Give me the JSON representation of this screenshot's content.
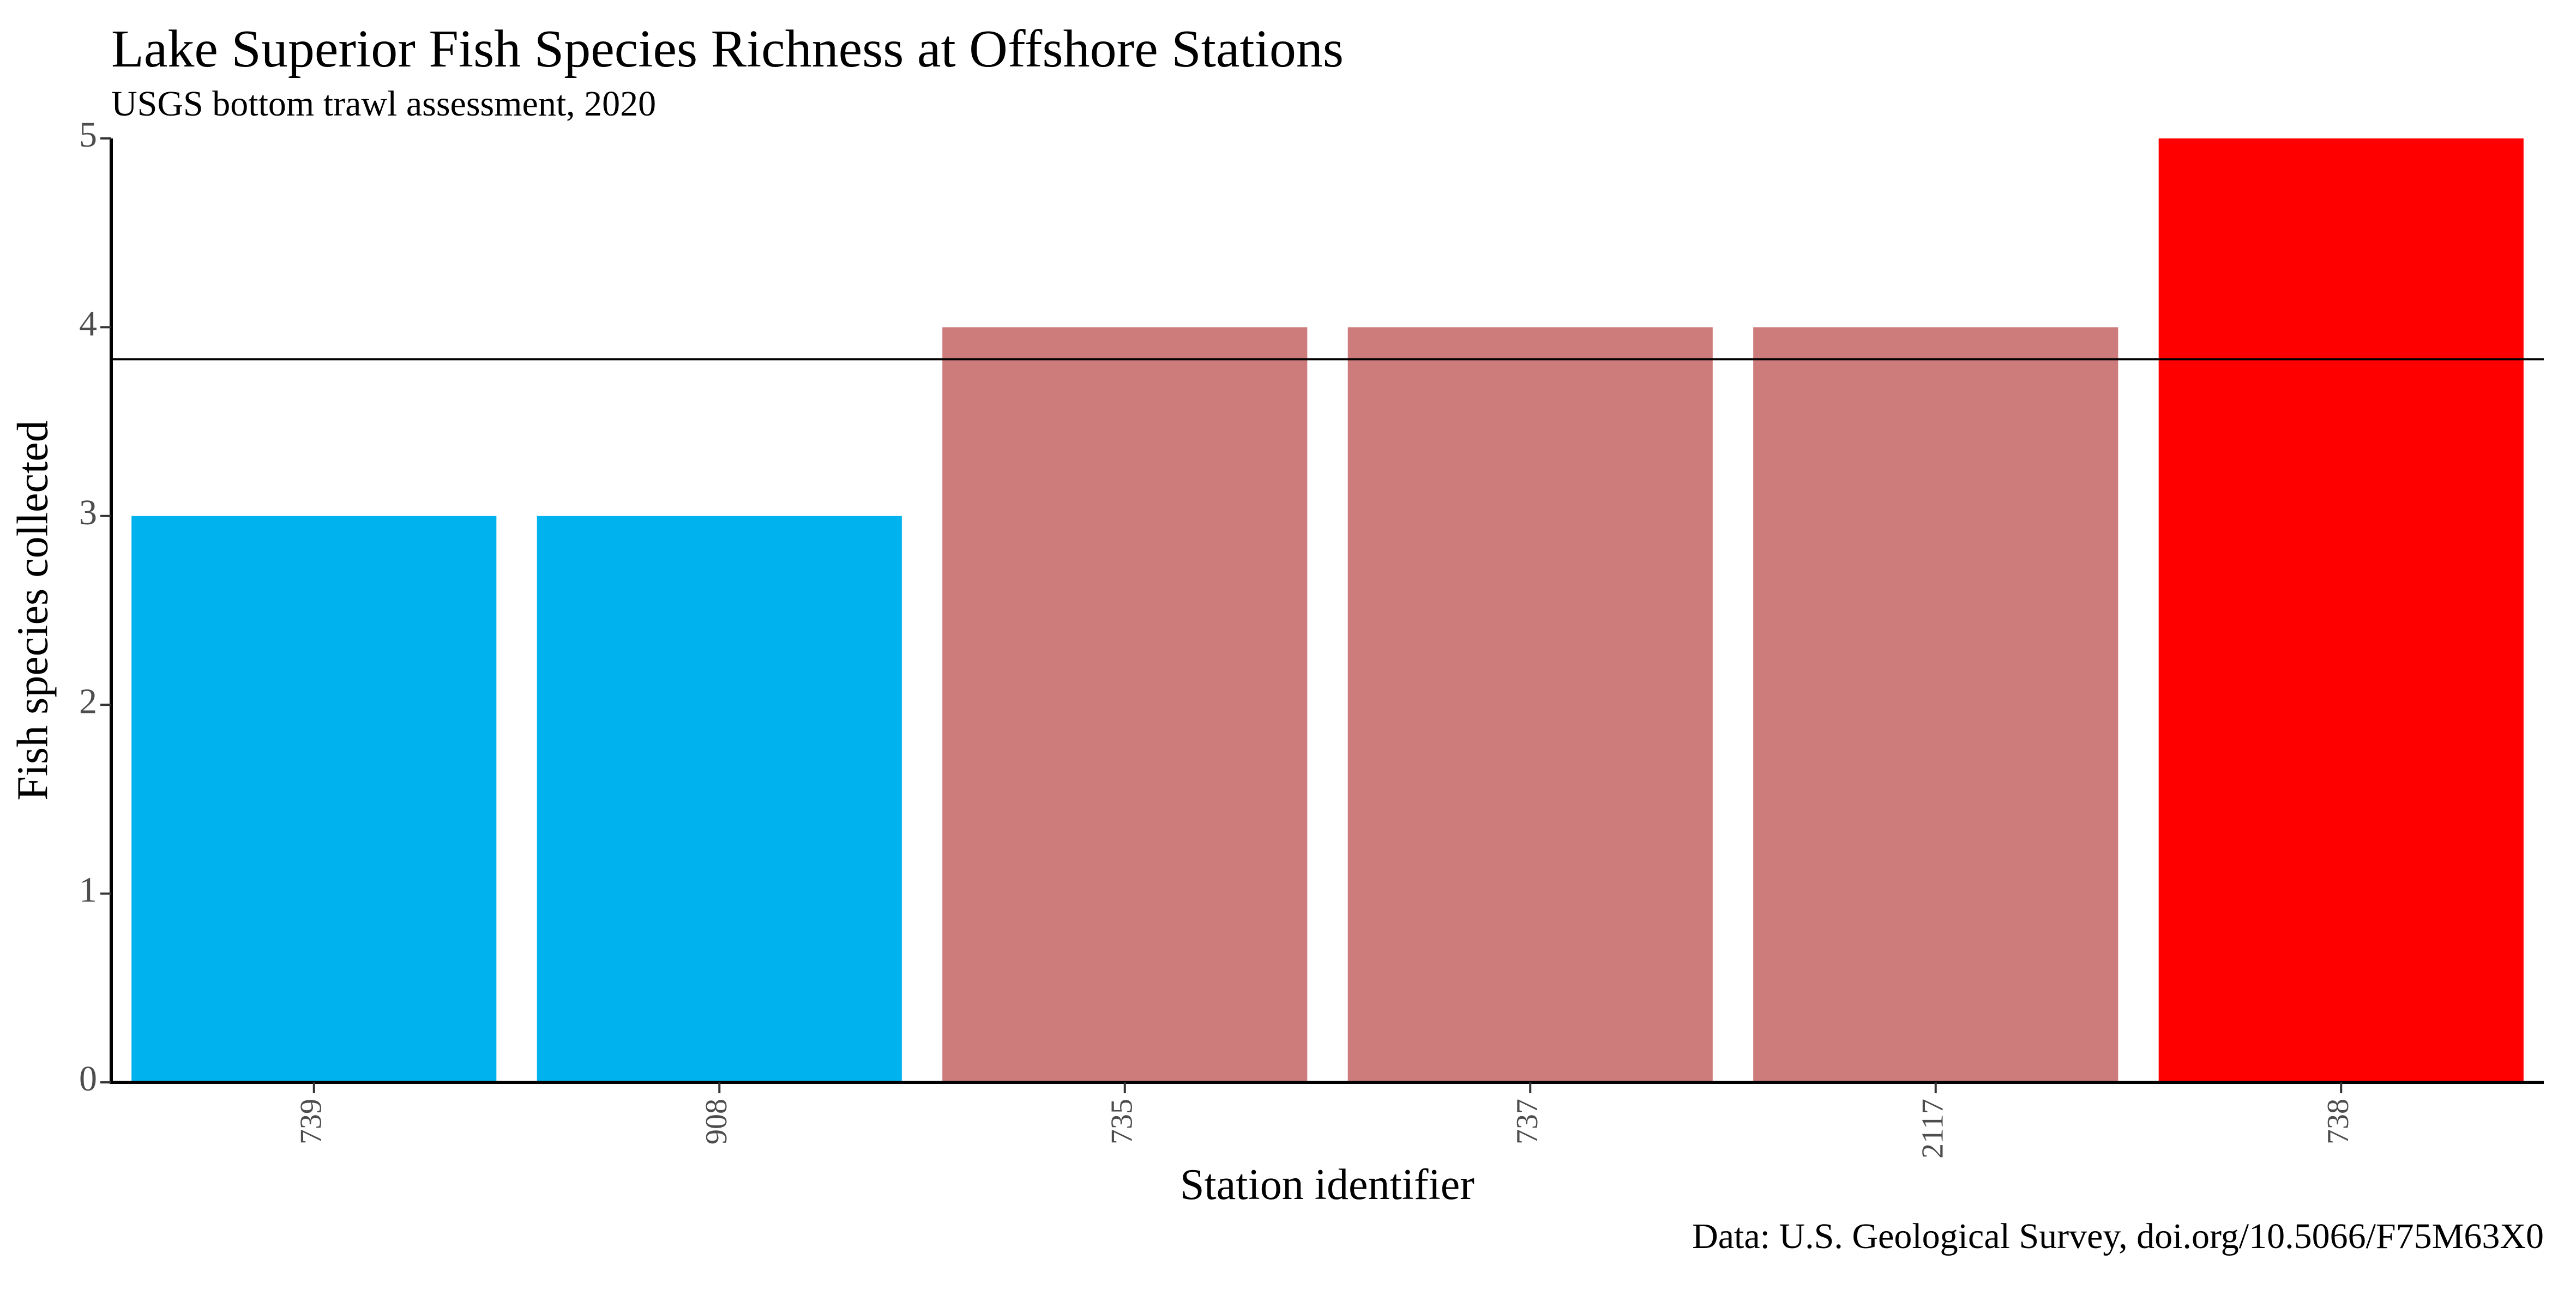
{
  "chart_data": {
    "type": "bar",
    "title": "Lake Superior Fish Species Richness at Offshore Stations",
    "subtitle": "USGS bottom trawl assessment, 2020",
    "xlabel": "Station identifier",
    "ylabel": "Fish species collected",
    "caption": "Data: U.S. Geological Survey, doi.org/10.5066/F75M63X0",
    "categories": [
      "739",
      "908",
      "735",
      "737",
      "2117",
      "738"
    ],
    "values": [
      3,
      3,
      4,
      4,
      4,
      5
    ],
    "bar_colors": [
      "#00B2EE",
      "#00B2EE",
      "#CD7B7B",
      "#CD7B7B",
      "#CD7B7B",
      "#FF0000"
    ],
    "yticks": [
      "0",
      "1",
      "2",
      "3",
      "4",
      "5"
    ],
    "ylim": [
      0,
      5
    ],
    "reference_line": {
      "y": 3.83
    },
    "grid": false,
    "legend": "none",
    "colors": {
      "axis": "#000000",
      "tick_label": "#4D4D4D",
      "text": "#000000"
    }
  }
}
